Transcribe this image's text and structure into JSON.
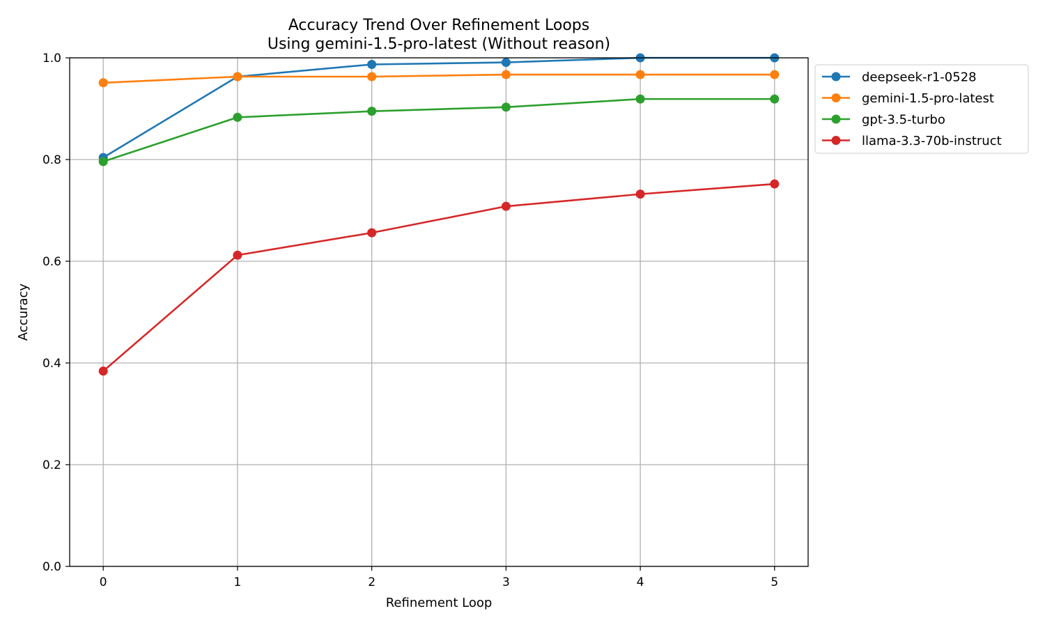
{
  "chart_data": {
    "type": "line",
    "title": "Accuracy Trend Over Refinement Loops",
    "subtitle": "Using gemini-1.5-pro-latest (Without reason)",
    "xlabel": "Refinement Loop",
    "ylabel": "Accuracy",
    "x": [
      0,
      1,
      2,
      3,
      4,
      5
    ],
    "xlim": [
      -0.25,
      5.25
    ],
    "ylim": [
      0.0,
      1.0
    ],
    "xticks": [
      "0",
      "1",
      "2",
      "3",
      "4",
      "5"
    ],
    "yticks": [
      "0.0",
      "0.2",
      "0.4",
      "0.6",
      "0.8",
      "1.0"
    ],
    "grid": true,
    "legend_position": "outside-top-right",
    "series": [
      {
        "name": "deepseek-r1-0528",
        "color": "#1f77b4",
        "values": [
          0.804,
          0.963,
          0.987,
          0.991,
          1.0,
          1.0
        ]
      },
      {
        "name": "gemini-1.5-pro-latest",
        "color": "#ff7f0e",
        "values": [
          0.951,
          0.963,
          0.963,
          0.967,
          0.967,
          0.967
        ]
      },
      {
        "name": "gpt-3.5-turbo",
        "color": "#2ca02c",
        "values": [
          0.796,
          0.883,
          0.895,
          0.903,
          0.919,
          0.919
        ]
      },
      {
        "name": "llama-3.3-70b-instruct",
        "color": "#d62728",
        "values": [
          0.384,
          0.612,
          0.656,
          0.708,
          0.732,
          0.752
        ]
      }
    ]
  }
}
